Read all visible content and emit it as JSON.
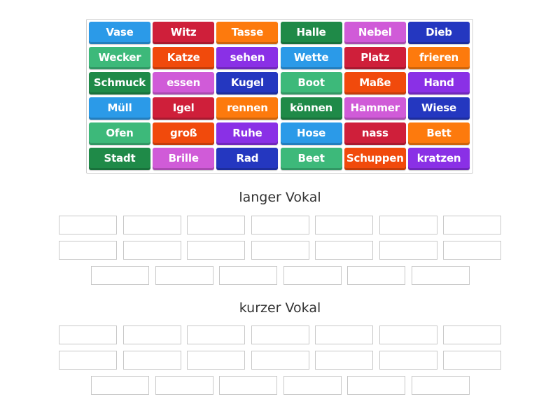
{
  "colors": {
    "blue": "#2b9ae8",
    "red": "#cf1f3a",
    "orange": "#fd7a0d",
    "darkgreen": "#1f8a48",
    "pink": "#d05bd8",
    "navy": "#2437c0",
    "teal": "#3db97a",
    "redorange": "#f14a0c",
    "purple": "#8a30e6"
  },
  "color_cycle": [
    "blue",
    "red",
    "orange",
    "darkgreen",
    "pink",
    "navy",
    "teal",
    "redorange",
    "purple"
  ],
  "tiles": [
    "Vase",
    "Witz",
    "Tasse",
    "Halle",
    "Nebel",
    "Dieb",
    "Wecker",
    "Katze",
    "sehen",
    "Wette",
    "Platz",
    "frieren",
    "Schmuck",
    "essen",
    "Kugel",
    "Boot",
    "Maße",
    "Hand",
    "Müll",
    "Igel",
    "rennen",
    "können",
    "Hammer",
    "Wiese",
    "Ofen",
    "groß",
    "Ruhe",
    "Hose",
    "nass",
    "Bett",
    "Stadt",
    "Brille",
    "Rad",
    "Beet",
    "Schuppen",
    "kratzen"
  ],
  "groups": [
    {
      "title": "langer Vokal"
    },
    {
      "title": "kurzer Vokal"
    }
  ]
}
